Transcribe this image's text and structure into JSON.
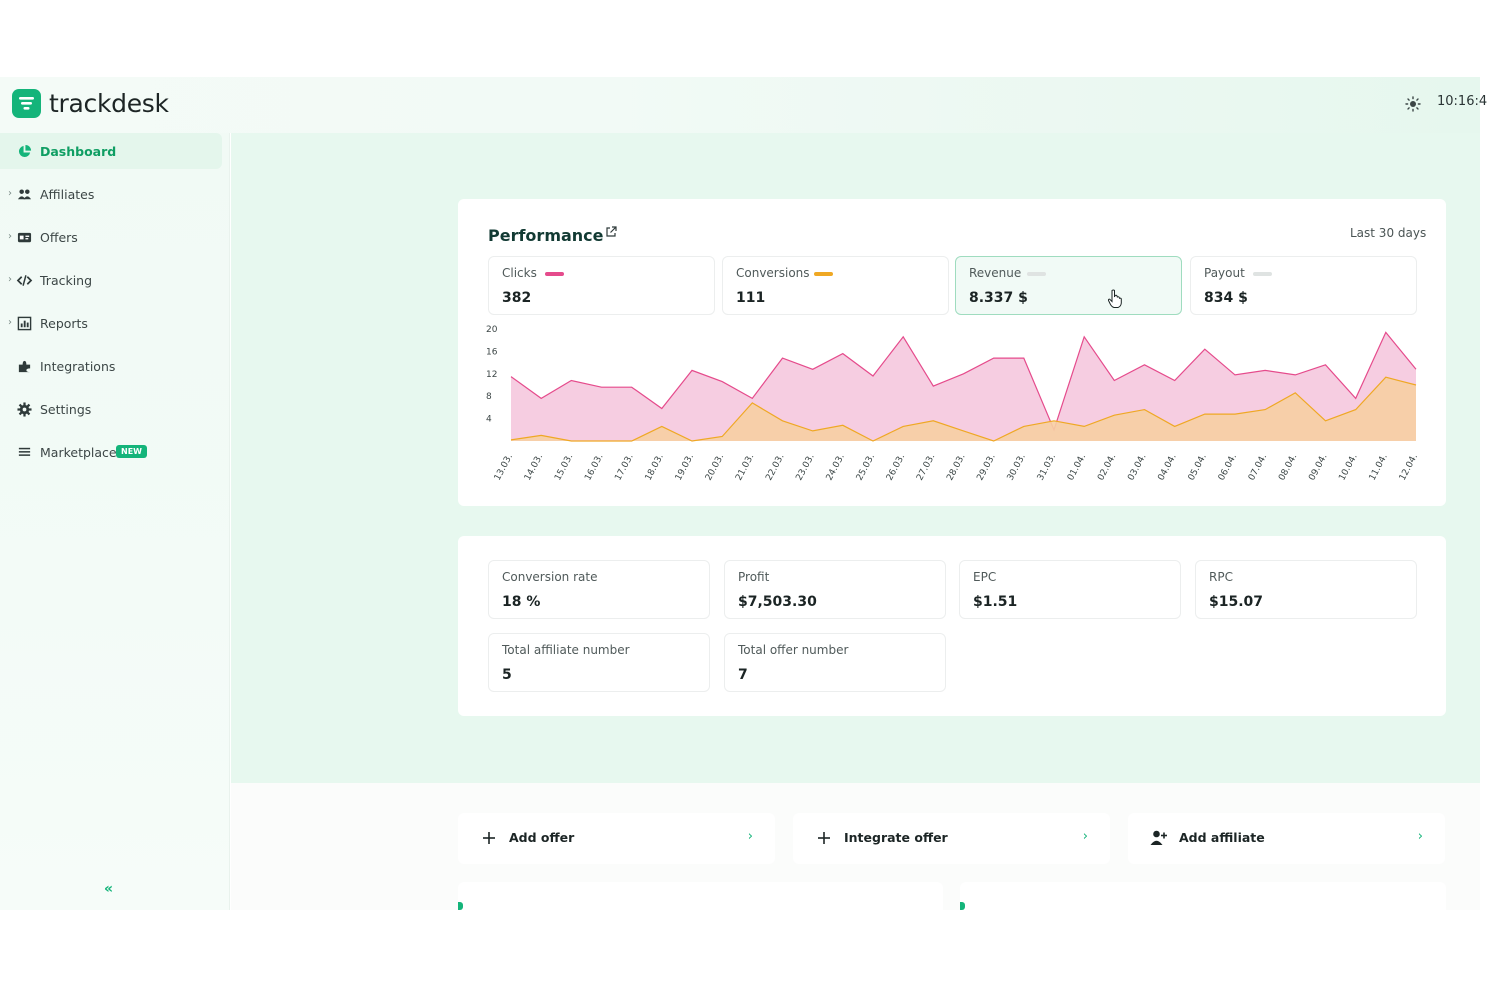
{
  "brand": {
    "name": "trackdesk",
    "accent": "#14b47a"
  },
  "header": {
    "clock": "10:16:4"
  },
  "sidebar": {
    "items": [
      {
        "label": "Dashboard",
        "icon": "pie-chart-icon",
        "active": true
      },
      {
        "label": "Affiliates",
        "icon": "users-icon"
      },
      {
        "label": "Offers",
        "icon": "card-icon"
      },
      {
        "label": "Tracking",
        "icon": "code-icon"
      },
      {
        "label": "Reports",
        "icon": "report-icon"
      },
      {
        "label": "Integrations",
        "icon": "puzzle-icon"
      },
      {
        "label": "Settings",
        "icon": "gear-icon"
      },
      {
        "label": "Marketplace",
        "icon": "list-icon",
        "badge": "NEW"
      }
    ],
    "collapse": "«"
  },
  "performance": {
    "title": "Performance",
    "range": "Last 30 days",
    "metrics": [
      {
        "label": "Clicks",
        "value": "382",
        "color": "#e54b8c"
      },
      {
        "label": "Conversions",
        "value": "111",
        "color": "#efa824"
      },
      {
        "label": "Revenue",
        "value": "8.337 $",
        "color": "#dfe3e2",
        "selected": true
      },
      {
        "label": "Payout",
        "value": "834 $",
        "color": "#dfe3e2"
      }
    ]
  },
  "chart_data": {
    "type": "area",
    "categories": [
      "13.03.",
      "14.03.",
      "15.03.",
      "16.03.",
      "17.03.",
      "18.03.",
      "19.03.",
      "20.03.",
      "21.03.",
      "22.03.",
      "23.03.",
      "24.03.",
      "25.03.",
      "26.03.",
      "27.03.",
      "28.03.",
      "29.03.",
      "30.03.",
      "31.03.",
      "01.04.",
      "02.04.",
      "03.04.",
      "04.04.",
      "05.04.",
      "06.04.",
      "07.04.",
      "08.04.",
      "09.04.",
      "10.04.",
      "11.04.",
      "12.04."
    ],
    "yticks": [
      20,
      16,
      12,
      8,
      4
    ],
    "ylim": [
      0,
      20
    ],
    "series": [
      {
        "color": "#e54b8c",
        "fill": "#f5c4dc",
        "values": [
          11.5,
          7.6,
          10.8,
          9.6,
          9.6,
          5.8,
          12.6,
          10.6,
          7.6,
          14.8,
          12.8,
          15.6,
          11.6,
          18.6,
          9.8,
          12.0,
          14.8,
          14.8,
          2.0,
          18.6,
          10.8,
          13.6,
          10.8,
          16.4,
          11.8,
          12.6,
          11.8,
          13.6,
          7.6,
          19.4,
          12.8
        ]
      },
      {
        "color": "#efa824",
        "fill": "#f7cfa3",
        "values": [
          0.2,
          1.0,
          0.0,
          0.0,
          0.0,
          2.6,
          0.0,
          0.8,
          6.8,
          3.6,
          1.8,
          2.8,
          0.0,
          2.6,
          3.6,
          1.8,
          0.0,
          2.6,
          3.6,
          2.6,
          4.6,
          5.6,
          2.6,
          4.8,
          4.8,
          5.6,
          8.6,
          3.6,
          5.6,
          11.4,
          10.0
        ]
      }
    ]
  },
  "stats": [
    {
      "label": "Conversion rate",
      "value": "18 %"
    },
    {
      "label": "Profit",
      "value": "$7,503.30"
    },
    {
      "label": "EPC",
      "value": "$1.51"
    },
    {
      "label": "RPC",
      "value": "$15.07"
    },
    {
      "label": "Total affiliate number",
      "value": "5"
    },
    {
      "label": "Total offer number",
      "value": "7"
    }
  ],
  "actions": [
    {
      "label": "Add offer",
      "icon": "plus-icon"
    },
    {
      "label": "Integrate offer",
      "icon": "plus-icon"
    },
    {
      "label": "Add affiliate",
      "icon": "add-user-icon"
    }
  ]
}
